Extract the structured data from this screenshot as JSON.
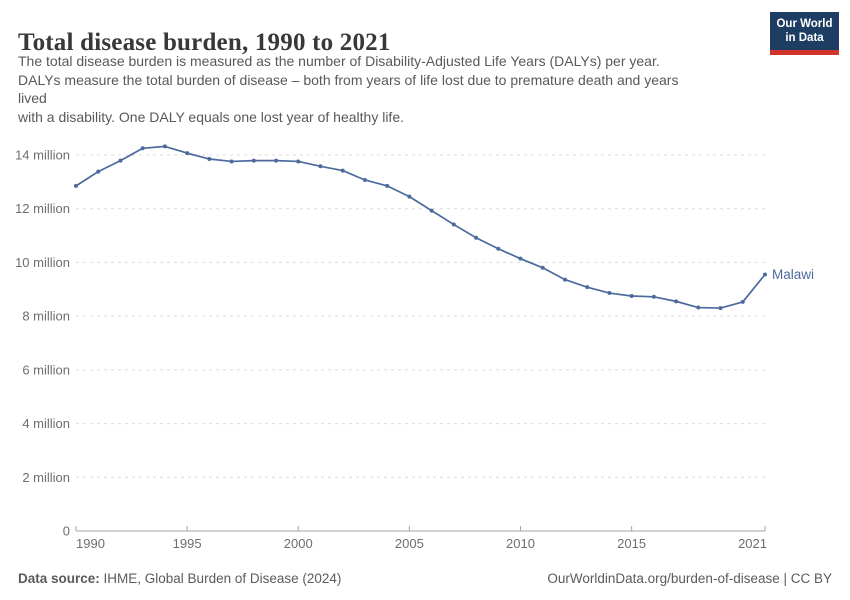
{
  "header": {
    "title": "Total disease burden, 1990 to 2021",
    "subtitle_lines": [
      "The total disease burden is measured as the number of Disability-Adjusted Life Years (DALYs) per year.",
      "DALYs measure the total burden of disease – both from years of life lost due to premature death and years",
      "lived",
      "with a disability. One DALY equals one lost year of healthy life."
    ]
  },
  "logo": {
    "line1": "Our World",
    "line2": "in Data",
    "bg_color": "#1d3d63",
    "bar_color": "#d0342c"
  },
  "chart_data": {
    "type": "line",
    "title": "Total disease burden, 1990 to 2021",
    "unit": "DALYs (Disability-Adjusted Life Years) per year",
    "x": [
      1990,
      1991,
      1992,
      1993,
      1994,
      1995,
      1996,
      1997,
      1998,
      1999,
      2000,
      2001,
      2002,
      2003,
      2004,
      2005,
      2006,
      2007,
      2008,
      2009,
      2010,
      2011,
      2012,
      2013,
      2014,
      2015,
      2016,
      2017,
      2018,
      2019,
      2020,
      2021
    ],
    "series": [
      {
        "name": "Malawi",
        "color": "#4c6a9c",
        "values_millions": [
          12.85,
          13.38,
          13.79,
          14.25,
          14.32,
          14.07,
          13.85,
          13.76,
          13.79,
          13.79,
          13.76,
          13.58,
          13.42,
          13.07,
          12.85,
          12.45,
          11.93,
          11.41,
          10.92,
          10.51,
          10.14,
          9.8,
          9.36,
          9.08,
          8.86,
          8.75,
          8.72,
          8.55,
          8.32,
          8.3,
          8.53,
          9.55
        ]
      }
    ],
    "xlabel": "",
    "ylabel": "",
    "ylim_millions": [
      0,
      14
    ],
    "grid": true,
    "legend_position": "end-of-line",
    "y_ticks": [
      {
        "value": 0,
        "label": "0"
      },
      {
        "value": 2,
        "label": "2 million"
      },
      {
        "value": 4,
        "label": "4 million"
      },
      {
        "value": 6,
        "label": "6 million"
      },
      {
        "value": 8,
        "label": "8 million"
      },
      {
        "value": 10,
        "label": "10 million"
      },
      {
        "value": 12,
        "label": "12 million"
      },
      {
        "value": 14,
        "label": "14 million"
      }
    ],
    "x_ticks": [
      {
        "value": 1990,
        "label": "1990"
      },
      {
        "value": 1995,
        "label": "1995"
      },
      {
        "value": 2000,
        "label": "2000"
      },
      {
        "value": 2005,
        "label": "2005"
      },
      {
        "value": 2010,
        "label": "2010"
      },
      {
        "value": 2015,
        "label": "2015"
      },
      {
        "value": 2021,
        "label": "2021"
      }
    ]
  },
  "footer": {
    "source_label": "Data source:",
    "source_text": " IHME, Global Burden of Disease (2024)",
    "credit": "OurWorldinData.org/burden-of-disease | CC BY"
  },
  "colors": {
    "line": "#4c6a9c",
    "grid": "#dcdcdc",
    "axis": "#a5a5a5",
    "tick_text": "#6e6e6e"
  }
}
